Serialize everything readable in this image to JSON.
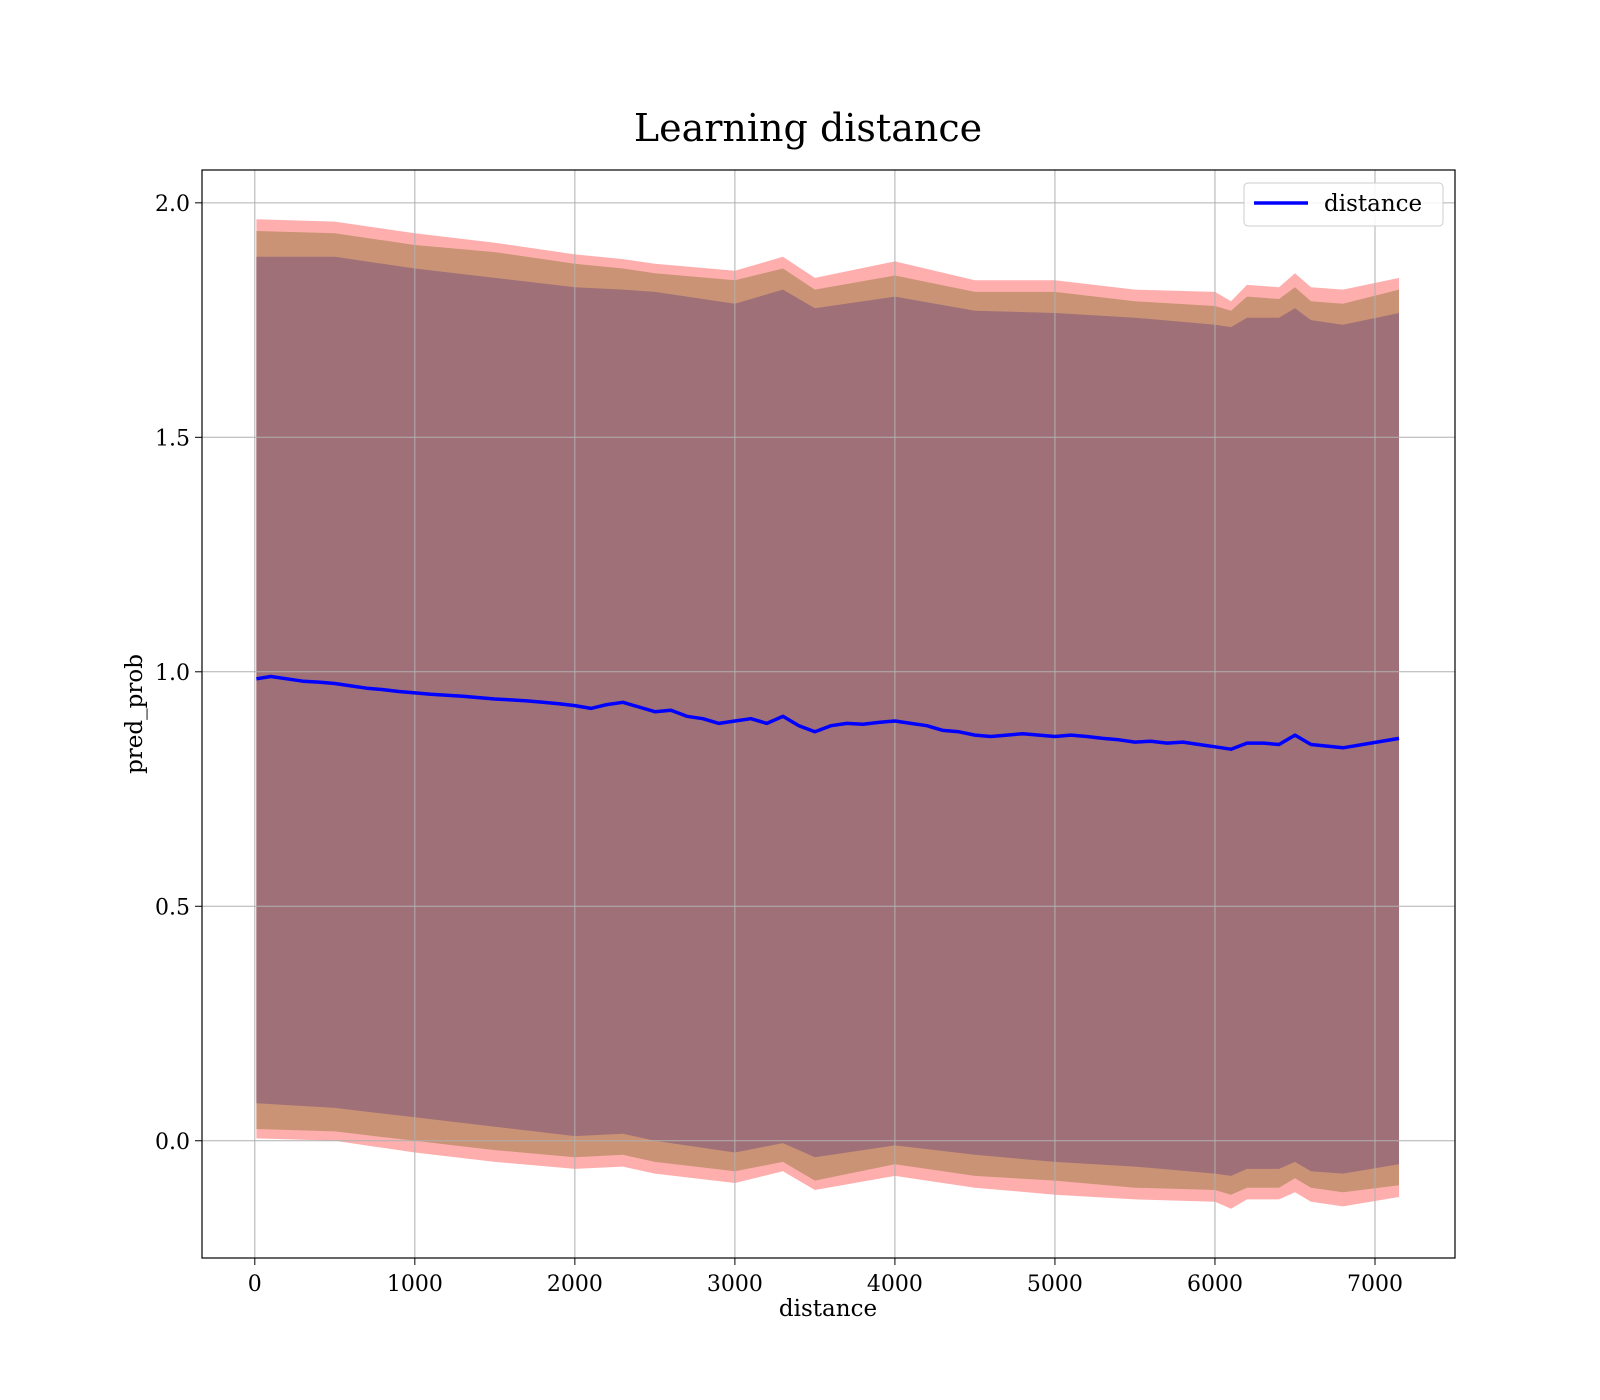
{
  "chart_data": {
    "type": "line",
    "title": "Learning distance",
    "xlabel": "distance",
    "ylabel": "pred_prob",
    "xlim": [
      -330,
      7500
    ],
    "ylim": [
      -0.25,
      2.07
    ],
    "xticks": [
      0,
      1000,
      2000,
      3000,
      4000,
      5000,
      6000,
      7000
    ],
    "xtick_labels": [
      "0",
      "1000",
      "2000",
      "3000",
      "4000",
      "5000",
      "6000",
      "7000"
    ],
    "yticks": [
      0.0,
      0.5,
      1.0,
      1.5,
      2.0
    ],
    "ytick_labels": [
      "0.0",
      "0.5",
      "1.0",
      "1.5",
      "2.0"
    ],
    "grid": true,
    "legend": {
      "placement": "top-right",
      "entries": [
        "distance"
      ]
    },
    "colors": {
      "line": "#0000ff",
      "band_outer": "#ff9a9a",
      "band_middle": "#c4906f",
      "band_inner": "#a07078"
    },
    "series": [
      {
        "name": "distance",
        "x": [
          10,
          100,
          200,
          300,
          400,
          500,
          600,
          700,
          800,
          900,
          1000,
          1100,
          1200,
          1300,
          1400,
          1500,
          1600,
          1700,
          1800,
          1900,
          2000,
          2100,
          2200,
          2300,
          2400,
          2500,
          2600,
          2700,
          2800,
          2900,
          3000,
          3100,
          3200,
          3300,
          3400,
          3500,
          3600,
          3700,
          3800,
          3900,
          4000,
          4100,
          4200,
          4300,
          4400,
          4500,
          4600,
          4700,
          4800,
          4900,
          5000,
          5100,
          5200,
          5300,
          5400,
          5500,
          5600,
          5700,
          5800,
          5900,
          6000,
          6100,
          6200,
          6300,
          6400,
          6500,
          6600,
          6800,
          7150
        ],
        "y": [
          0.985,
          0.99,
          0.985,
          0.98,
          0.978,
          0.975,
          0.97,
          0.965,
          0.962,
          0.958,
          0.955,
          0.952,
          0.95,
          0.948,
          0.945,
          0.942,
          0.94,
          0.938,
          0.935,
          0.932,
          0.928,
          0.922,
          0.93,
          0.935,
          0.925,
          0.915,
          0.918,
          0.905,
          0.9,
          0.89,
          0.895,
          0.9,
          0.89,
          0.905,
          0.885,
          0.872,
          0.885,
          0.89,
          0.888,
          0.892,
          0.895,
          0.89,
          0.885,
          0.875,
          0.872,
          0.865,
          0.862,
          0.865,
          0.868,
          0.865,
          0.862,
          0.865,
          0.862,
          0.858,
          0.855,
          0.85,
          0.852,
          0.848,
          0.85,
          0.845,
          0.84,
          0.835,
          0.848,
          0.848,
          0.845,
          0.865,
          0.845,
          0.838,
          0.858
        ]
      }
    ],
    "bands": [
      {
        "x": [
          10,
          500,
          1000,
          1500,
          2000,
          2300,
          2500,
          3000,
          3300,
          3500,
          4000,
          4500,
          5000,
          5500,
          6000,
          6100,
          6200,
          6400,
          6500,
          6600,
          6800,
          7150
        ],
        "upper": [
          1.965,
          1.96,
          1.935,
          1.915,
          1.89,
          1.88,
          1.87,
          1.855,
          1.885,
          1.84,
          1.875,
          1.835,
          1.835,
          1.815,
          1.81,
          1.79,
          1.825,
          1.82,
          1.85,
          1.82,
          1.815,
          1.84
        ],
        "lower": [
          0.005,
          0.0,
          -0.025,
          -0.045,
          -0.06,
          -0.055,
          -0.07,
          -0.09,
          -0.065,
          -0.105,
          -0.075,
          -0.1,
          -0.115,
          -0.125,
          -0.13,
          -0.145,
          -0.125,
          -0.125,
          -0.11,
          -0.13,
          -0.14,
          -0.12
        ]
      },
      {
        "x": [
          10,
          500,
          1000,
          1500,
          2000,
          2300,
          2500,
          3000,
          3300,
          3500,
          4000,
          4500,
          5000,
          5500,
          6000,
          6100,
          6200,
          6400,
          6500,
          6600,
          6800,
          7150
        ],
        "upper": [
          1.94,
          1.935,
          1.91,
          1.895,
          1.87,
          1.86,
          1.85,
          1.835,
          1.86,
          1.815,
          1.845,
          1.81,
          1.81,
          1.79,
          1.78,
          1.77,
          1.8,
          1.795,
          1.82,
          1.79,
          1.785,
          1.815
        ],
        "lower": [
          0.025,
          0.02,
          0.0,
          -0.02,
          -0.035,
          -0.03,
          -0.045,
          -0.065,
          -0.045,
          -0.085,
          -0.05,
          -0.075,
          -0.085,
          -0.1,
          -0.105,
          -0.115,
          -0.1,
          -0.1,
          -0.08,
          -0.1,
          -0.11,
          -0.095
        ]
      },
      {
        "x": [
          10,
          500,
          1000,
          1500,
          2000,
          2300,
          2500,
          3000,
          3300,
          3500,
          4000,
          4500,
          5000,
          5500,
          6000,
          6100,
          6200,
          6400,
          6500,
          6600,
          6800,
          7150
        ],
        "upper": [
          1.885,
          1.885,
          1.86,
          1.84,
          1.82,
          1.815,
          1.81,
          1.785,
          1.815,
          1.775,
          1.8,
          1.77,
          1.765,
          1.755,
          1.74,
          1.735,
          1.755,
          1.755,
          1.775,
          1.75,
          1.74,
          1.765
        ],
        "lower": [
          0.08,
          0.07,
          0.05,
          0.03,
          0.01,
          0.015,
          0.0,
          -0.025,
          -0.005,
          -0.035,
          -0.01,
          -0.03,
          -0.045,
          -0.055,
          -0.07,
          -0.075,
          -0.06,
          -0.06,
          -0.045,
          -0.065,
          -0.07,
          -0.05
        ]
      }
    ]
  }
}
